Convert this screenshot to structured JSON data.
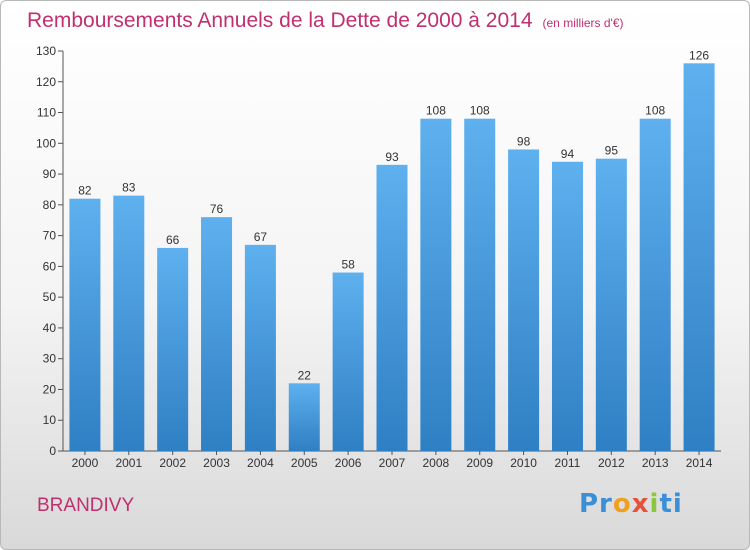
{
  "chart_data": {
    "type": "bar",
    "title": "Remboursements Annuels de la Dette de 2000 à 2014",
    "unit_note": "(en milliers d'€)",
    "categories": [
      "2000",
      "2001",
      "2002",
      "2003",
      "2004",
      "2005",
      "2006",
      "2007",
      "2008",
      "2009",
      "2010",
      "2011",
      "2012",
      "2013",
      "2014"
    ],
    "values": [
      82,
      83,
      66,
      76,
      67,
      22,
      58,
      93,
      108,
      108,
      98,
      94,
      95,
      108,
      126
    ],
    "ylim": [
      0,
      130
    ],
    "yticks": [
      0,
      10,
      20,
      30,
      40,
      50,
      60,
      70,
      80,
      90,
      100,
      110,
      120,
      130
    ],
    "grid": false,
    "bar_color": "#4a9ee0",
    "title_color": "#c03070"
  },
  "footer": {
    "place_name": "BRANDIVY",
    "logo_text": [
      "Pr",
      "o",
      "x",
      "i",
      "ti"
    ]
  }
}
